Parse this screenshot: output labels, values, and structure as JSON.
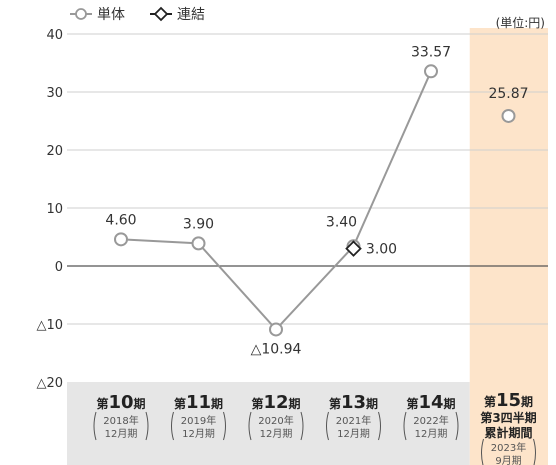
{
  "chart_data": {
    "type": "line",
    "unit_label": "(単位:円)",
    "ylim": [
      -20,
      40
    ],
    "y_ticks": [
      40,
      30,
      20,
      10,
      0,
      -10,
      -20
    ],
    "y_tick_labels": [
      "40",
      "30",
      "20",
      "10",
      "0",
      "△10",
      "△20"
    ],
    "grid": true,
    "legend_position": "top-left",
    "categories": [
      {
        "main_prefix": "第",
        "main_num": "10",
        "main_suffix": "期",
        "sub1": "2018年",
        "sub2": "12月期",
        "highlight": false
      },
      {
        "main_prefix": "第",
        "main_num": "11",
        "main_suffix": "期",
        "sub1": "2019年",
        "sub2": "12月期",
        "highlight": false
      },
      {
        "main_prefix": "第",
        "main_num": "12",
        "main_suffix": "期",
        "sub1": "2020年",
        "sub2": "12月期",
        "highlight": false
      },
      {
        "main_prefix": "第",
        "main_num": "13",
        "main_suffix": "期",
        "sub1": "2021年",
        "sub2": "12月期",
        "highlight": false
      },
      {
        "main_prefix": "第",
        "main_num": "14",
        "main_suffix": "期",
        "sub1": "2022年",
        "sub2": "12月期",
        "highlight": false
      },
      {
        "main_prefix": "第",
        "main_num": "15",
        "main_suffix": "期",
        "line2": "第3四半期",
        "line3": "累計期間",
        "sub1": "2023年",
        "sub2": "9月期",
        "highlight": true
      }
    ],
    "series": [
      {
        "name": "単体",
        "marker": "circle",
        "color": "#999999",
        "values": [
          4.6,
          3.9,
          -10.94,
          3.4,
          33.57,
          25.87
        ],
        "labels": [
          "4.60",
          "3.90",
          "△10.94",
          "3.40",
          "33.57",
          "25.87"
        ],
        "connected_count": 5
      },
      {
        "name": "連結",
        "marker": "diamond",
        "color": "#222222",
        "values": [
          null,
          null,
          null,
          3.0,
          null,
          null
        ],
        "labels": [
          "",
          "",
          "",
          "3.00",
          "",
          ""
        ]
      }
    ],
    "colors": {
      "highlight_band": "#fde4ca",
      "category_band": "#e6e6e6",
      "gridline": "#cfcfcf",
      "zero_line": "#555555",
      "text": "#333333"
    }
  }
}
